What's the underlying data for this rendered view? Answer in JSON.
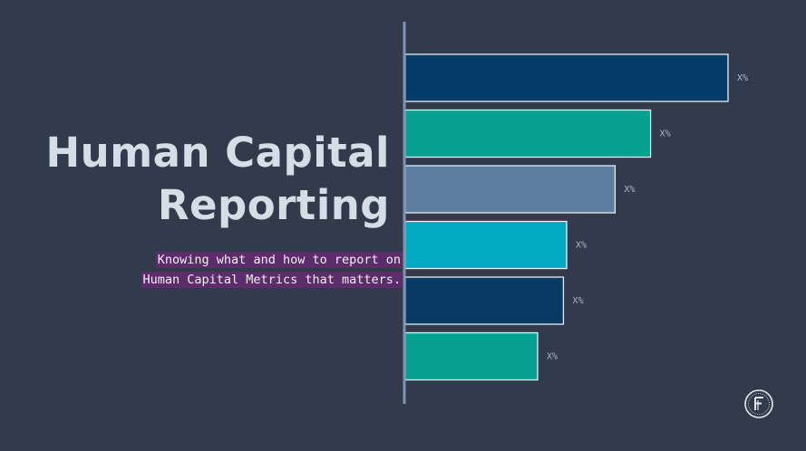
{
  "slide": {
    "title_line1": "Human Capital",
    "title_line2": "Reporting",
    "subtitle_line1": "Knowing what and how to report on",
    "subtitle_line2": "Human Capital Metrics that matters."
  },
  "colors": {
    "background": "#323b4c",
    "title": "#d6dde6",
    "subtitle_highlight": "#5d2c6b",
    "axis": "#7f93ae"
  },
  "chart_data": {
    "type": "bar",
    "orientation": "horizontal",
    "title": "",
    "xlabel": "",
    "ylabel": "",
    "xlim": [
      0,
      100
    ],
    "values": [
      100,
      76,
      65,
      50,
      49,
      41
    ],
    "labels": [
      "X%",
      "X%",
      "X%",
      "X%",
      "X%",
      "X%"
    ],
    "colors": [
      "#063d68",
      "#05a08e",
      "#5d7e9e",
      "#04aac4",
      "#083a63",
      "#05a08e"
    ],
    "grid": false,
    "legend": "none"
  },
  "logo": {
    "icon": "circular-monogram-logo-icon"
  }
}
